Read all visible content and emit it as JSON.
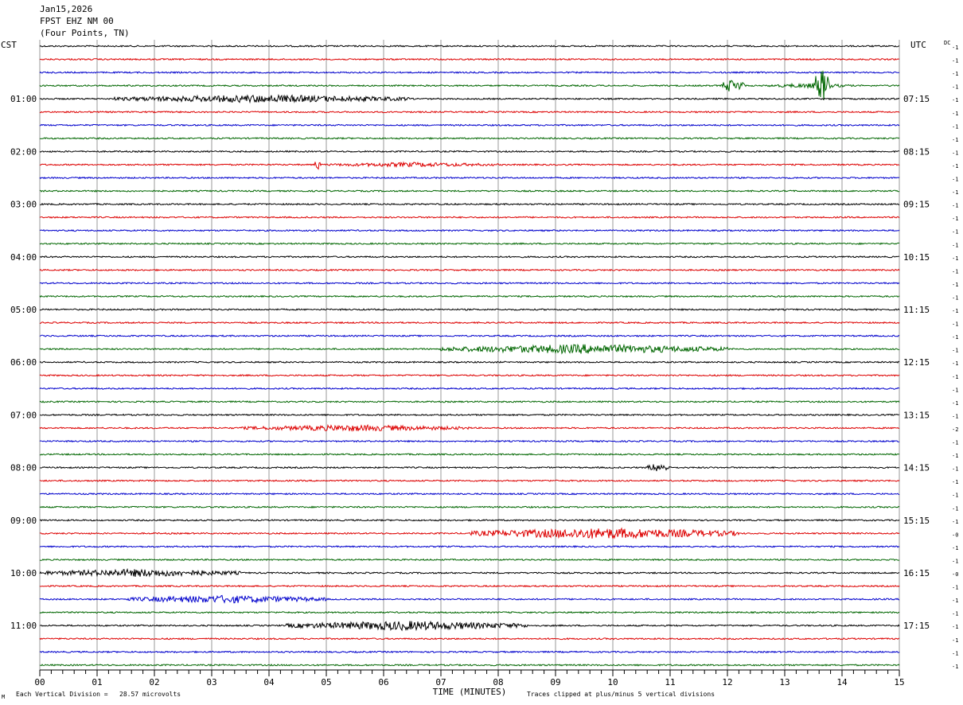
{
  "header": {
    "date": "Jan15,2026",
    "station": "FPST EHZ NM 00",
    "location": "(Four Points, TN)"
  },
  "left_zone_label": "CST",
  "right_zone_label": "UTC",
  "dc_label": "DC",
  "footer": {
    "vertical_division": "Each Vertical Division =   28.57 microvolts",
    "clipping_note": "Traces clipped at plus/minus 5 vertical divisions",
    "corner_mark": "M"
  },
  "chart_data": {
    "type": "line",
    "title": "",
    "xlabel": "TIME (MINUTES)",
    "ylabel": "",
    "xlim": [
      0,
      15
    ],
    "x_ticks": [
      "00",
      "01",
      "02",
      "03",
      "04",
      "05",
      "06",
      "07",
      "08",
      "09",
      "10",
      "11",
      "12",
      "13",
      "14",
      "15"
    ],
    "trace_count": 48,
    "trace_colors": [
      "#000000",
      "#dd0000",
      "#0000cc",
      "#006600"
    ],
    "left_time_labels": [
      "01:00",
      "02:00",
      "03:00",
      "04:00",
      "05:00",
      "06:00",
      "07:00",
      "08:00",
      "09:00",
      "10:00",
      "11:00"
    ],
    "right_time_labels": [
      "07:15",
      "08:15",
      "09:15",
      "10:15",
      "11:15",
      "12:15",
      "13:15",
      "14:15",
      "15:15",
      "16:15",
      "17:15"
    ],
    "hour_label_trace_indices": [
      4,
      8,
      12,
      16,
      20,
      24,
      28,
      32,
      36,
      40,
      44
    ],
    "dc_offsets": [
      "-1",
      "-1",
      "-1",
      "-1",
      "-1",
      "-1",
      "-1",
      "-1",
      "-1",
      "-1",
      "-1",
      "-1",
      "-1",
      "-1",
      "-1",
      "-1",
      "-1",
      "-1",
      "-1",
      "-1",
      "-1",
      "-1",
      "-1",
      "-1",
      "-1",
      "-1",
      "-1",
      "-1",
      "-1",
      "-2",
      "-1",
      "-1",
      "-1",
      "-1",
      "-1",
      "-1",
      "-1",
      "-0",
      "-1",
      "-1",
      "-0",
      "-1",
      "-1",
      "-1",
      "-1",
      "-1",
      "-1",
      "-1"
    ],
    "events": [
      {
        "trace": 3,
        "start_min": 11.9,
        "end_min": 12.3,
        "amplitude": 9
      },
      {
        "trace": 3,
        "start_min": 13.5,
        "end_min": 13.8,
        "amplitude": 22
      },
      {
        "trace": 3,
        "start_min": 12.7,
        "end_min": 14.2,
        "amplitude": 3
      },
      {
        "trace": 4,
        "start_min": 1.3,
        "end_min": 6.5,
        "amplitude": 5
      },
      {
        "trace": 9,
        "start_min": 4.8,
        "end_min": 4.9,
        "amplitude": 9
      },
      {
        "trace": 9,
        "start_min": 5.0,
        "end_min": 8.0,
        "amplitude": 3
      },
      {
        "trace": 23,
        "start_min": 7.0,
        "end_min": 12.0,
        "amplitude": 6
      },
      {
        "trace": 29,
        "start_min": 3.5,
        "end_min": 7.5,
        "amplitude": 4
      },
      {
        "trace": 32,
        "start_min": 10.6,
        "end_min": 11.0,
        "amplitude": 6
      },
      {
        "trace": 37,
        "start_min": 7.5,
        "end_min": 12.2,
        "amplitude": 7
      },
      {
        "trace": 40,
        "start_min": 0.0,
        "end_min": 3.5,
        "amplitude": 5
      },
      {
        "trace": 42,
        "start_min": 1.5,
        "end_min": 5.0,
        "amplitude": 5
      },
      {
        "trace": 44,
        "start_min": 4.3,
        "end_min": 8.5,
        "amplitude": 6
      }
    ]
  }
}
